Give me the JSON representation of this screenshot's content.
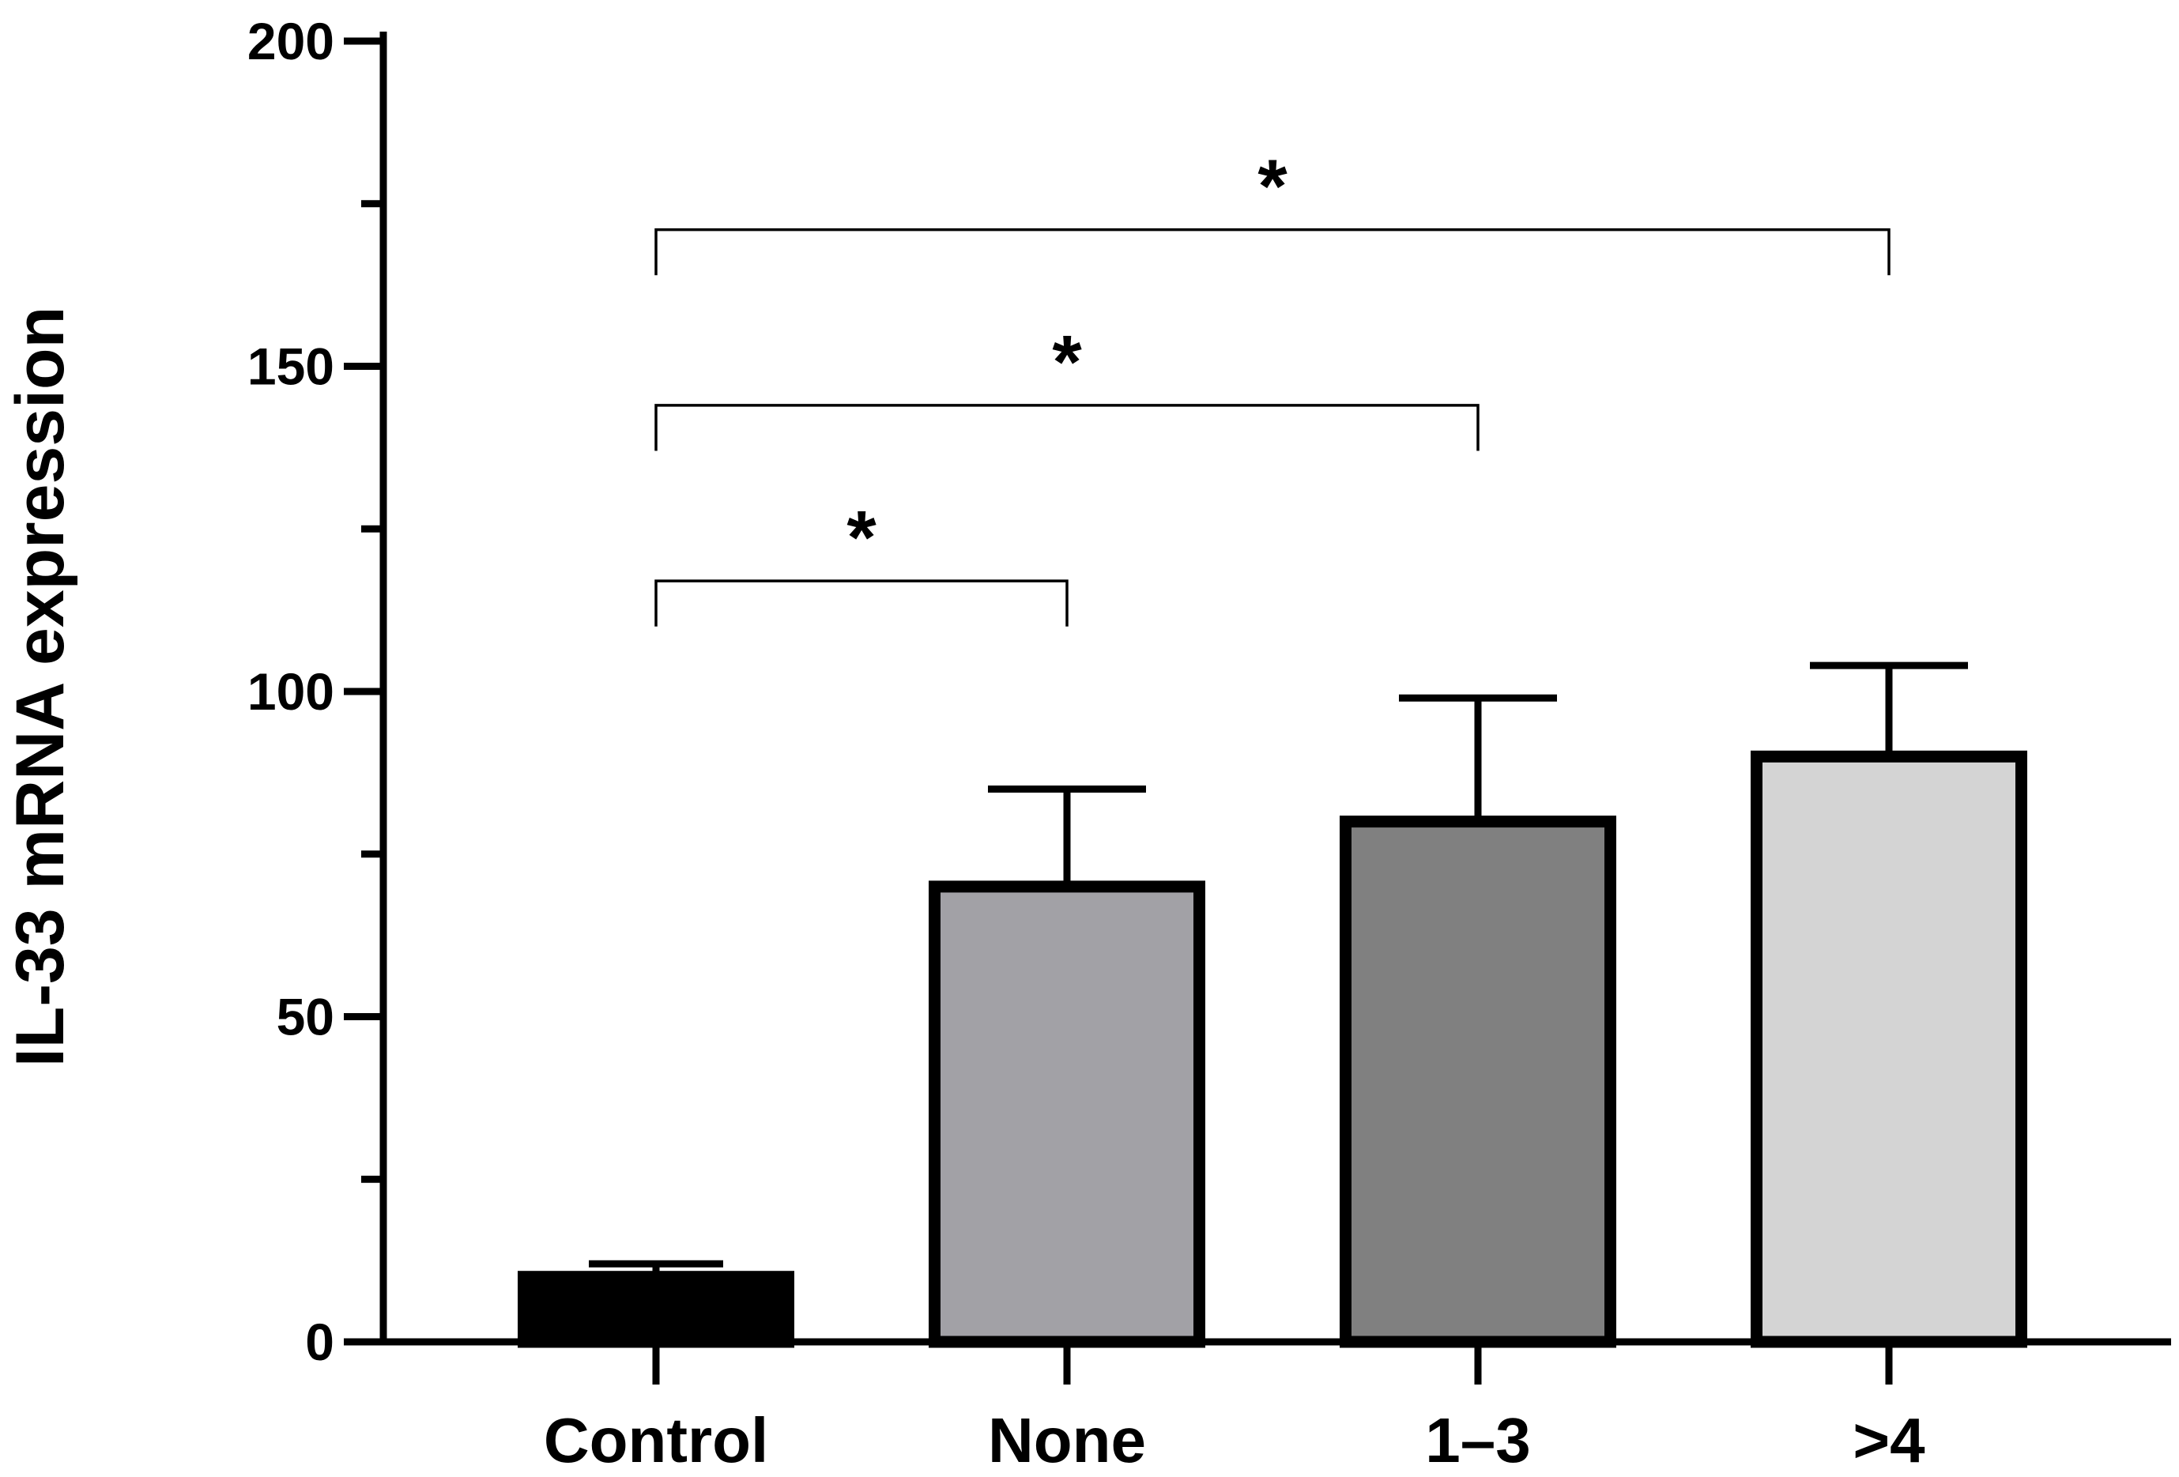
{
  "chart_data": {
    "type": "bar",
    "title": "",
    "xlabel": "",
    "ylabel": "IL-33 mRNA expression",
    "ylim": [
      0,
      200
    ],
    "yticks_major": [
      0,
      50,
      100,
      150,
      200
    ],
    "yticks_minor": [
      25,
      75,
      125,
      175
    ],
    "categories": [
      "Control",
      "None",
      "1–3",
      ">4"
    ],
    "values": [
      10,
      70,
      80,
      90
    ],
    "errors": [
      2,
      15,
      19,
      14
    ],
    "colors": [
      "#000000",
      "#a2a1a6",
      "#808080",
      "#d4d4d4"
    ],
    "significance": [
      {
        "from": 0,
        "to": 1,
        "label": "*",
        "y": 117,
        "left_drop": 7,
        "right_drop": 7
      },
      {
        "from": 0,
        "to": 2,
        "label": "*",
        "y": 144,
        "left_drop": 7,
        "right_drop": 7
      },
      {
        "from": 0,
        "to": 3,
        "label": "*",
        "y": 171,
        "left_drop": 7,
        "right_drop": 7
      }
    ]
  }
}
